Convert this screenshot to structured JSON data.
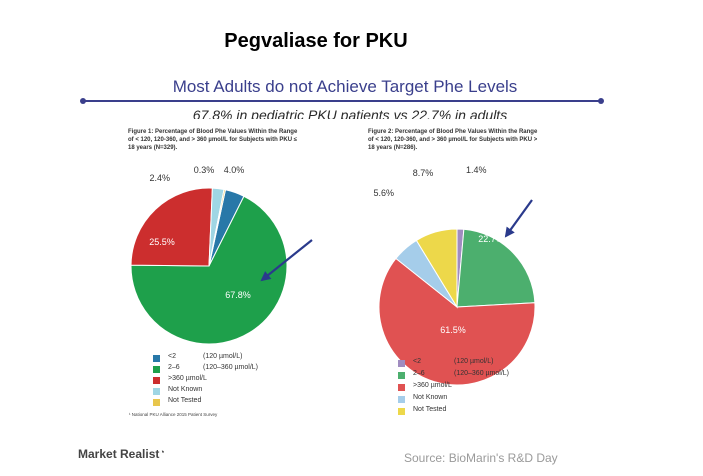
{
  "header": {
    "title": "Pegvaliase  for PKU",
    "subtitle": "Most Adults do not Achieve Target Phe Levels",
    "comparison": "67.8% in pediatric PKU patients vs 22.7% in adults"
  },
  "figure1": {
    "title": "Figure 1: Percentage of Blood Phe Values Within the Range of < 120, 120-360, and > 360 µmol/L for Subjects with PKU ≤ 18 years (N=329).",
    "footnote": "¹ National PKU Alliance 2015 Patient Survey"
  },
  "figure2": {
    "title": "Figure 2: Percentage of Blood Phe Values Within the Range of < 120, 120-360, and > 360 µmol/L for Subjects with PKU > 18 years (N=286)."
  },
  "legend": [
    {
      "label": "<2",
      "range": "(120 µmol/L)"
    },
    {
      "label": "2–6",
      "range": "(120–360 µmol/L)"
    },
    {
      "label": ">360 µmol/L",
      "range": ""
    },
    {
      "label": "Not Known",
      "range": ""
    },
    {
      "label": "Not Tested",
      "range": ""
    }
  ],
  "branding": {
    "logo": "Market Realist",
    "source": "Source:  BioMarin's R&D Day"
  },
  "chart_data": [
    {
      "type": "pie",
      "categories": [
        "<2",
        "2–6",
        ">360 µmol/L",
        "Not Known",
        "Not Tested"
      ],
      "values": [
        4.0,
        67.8,
        25.5,
        2.4,
        0.3
      ],
      "labels": [
        "4.0%",
        "67.8%",
        "25.5%",
        "2.4%",
        "0.3%"
      ],
      "colors": [
        "#2878a8",
        "#1ea04b",
        "#cc2e2e",
        "#9fd6e4",
        "#e8c64c"
      ],
      "highlight": "2–6"
    },
    {
      "type": "pie",
      "categories": [
        "<2",
        "2–6",
        ">360 µmol/L",
        "Not Known",
        "Not Tested"
      ],
      "values": [
        1.4,
        22.7,
        61.5,
        5.6,
        8.7
      ],
      "labels": [
        "1.4%",
        "22.7%",
        "61.5%",
        "5.6%",
        "8.7%"
      ],
      "colors": [
        "#a08cc0",
        "#4caf6e",
        "#e05252",
        "#a5cdea",
        "#edd84a"
      ],
      "highlight": "2–6"
    }
  ]
}
